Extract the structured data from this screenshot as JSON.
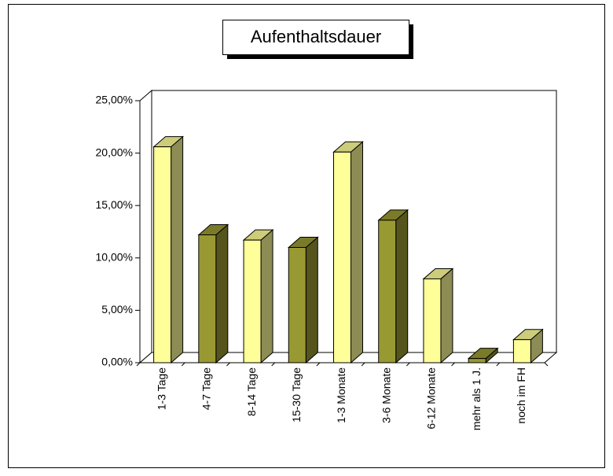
{
  "chart_data": {
    "type": "bar3d",
    "title": "Aufenthaltsdauer",
    "categories": [
      "1-3 Tage",
      "4-7 Tage",
      "8-14 Tage",
      "15-30 Tage",
      "1-3 Monate",
      "3-6 Monate",
      "6-12 Monate",
      "mehr als 1 J.",
      "noch im FH"
    ],
    "values": [
      20.6,
      12.2,
      11.7,
      11.0,
      20.1,
      13.6,
      8.0,
      0.4,
      2.2
    ],
    "colors": [
      "#ffff99",
      "#999933",
      "#ffff99",
      "#999933",
      "#ffff99",
      "#999933",
      "#ffff99",
      "#999933",
      "#ffff99"
    ],
    "ylim": [
      0,
      25
    ],
    "yticks": [
      {
        "value": 0,
        "label": "0,00%"
      },
      {
        "value": 5,
        "label": "5,00%"
      },
      {
        "value": 10,
        "label": "10,00%"
      },
      {
        "value": 15,
        "label": "15,00%"
      },
      {
        "value": 20,
        "label": "20,00%"
      },
      {
        "value": 25,
        "label": "25,00%"
      }
    ]
  }
}
